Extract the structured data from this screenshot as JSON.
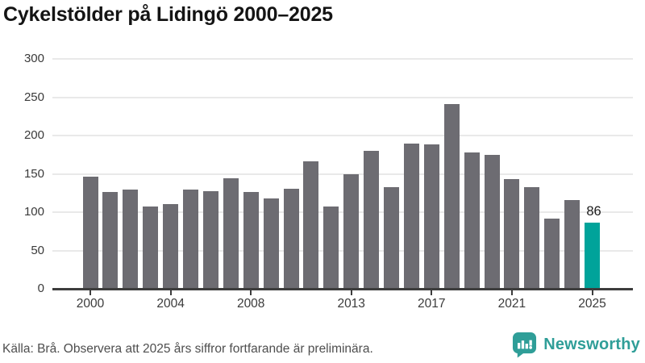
{
  "title": "Cykelstölder på Lidingö 2000–2025",
  "footer": {
    "source_note": "Källa: Brå. Observera att 2025 års siffror fortfarande är preliminära.",
    "brand": "Newsworthy"
  },
  "colors": {
    "bar": "#6d6c72",
    "highlight": "#00a39a",
    "grid": "#e9e9e9",
    "axis": "#3d3d3d",
    "title": "#141414",
    "tick_label": "#3a3a3a",
    "footer_text": "#4e4e4e",
    "brand": "#2f9e98"
  },
  "chart_data": {
    "type": "bar",
    "title": "Cykelstölder på Lidingö 2000–2025",
    "categories": [
      2000,
      2001,
      2002,
      2003,
      2004,
      2005,
      2006,
      2007,
      2008,
      2009,
      2010,
      2011,
      2012,
      2013,
      2014,
      2015,
      2016,
      2017,
      2018,
      2019,
      2020,
      2021,
      2022,
      2023,
      2024,
      2025
    ],
    "values": [
      146,
      126,
      130,
      107,
      111,
      129,
      127,
      144,
      126,
      118,
      131,
      166,
      107,
      150,
      180,
      133,
      190,
      188,
      241,
      178,
      175,
      143,
      133,
      92,
      116,
      86
    ],
    "highlight_year": 2025,
    "highlight_label": "86",
    "xlabel": "",
    "ylabel": "",
    "ylim": [
      0,
      300
    ],
    "yticks": [
      0,
      50,
      100,
      150,
      200,
      250,
      300
    ],
    "xticks": [
      2000,
      2004,
      2008,
      2013,
      2017,
      2021,
      2025
    ],
    "grid": "horizontal",
    "legend": "none"
  }
}
